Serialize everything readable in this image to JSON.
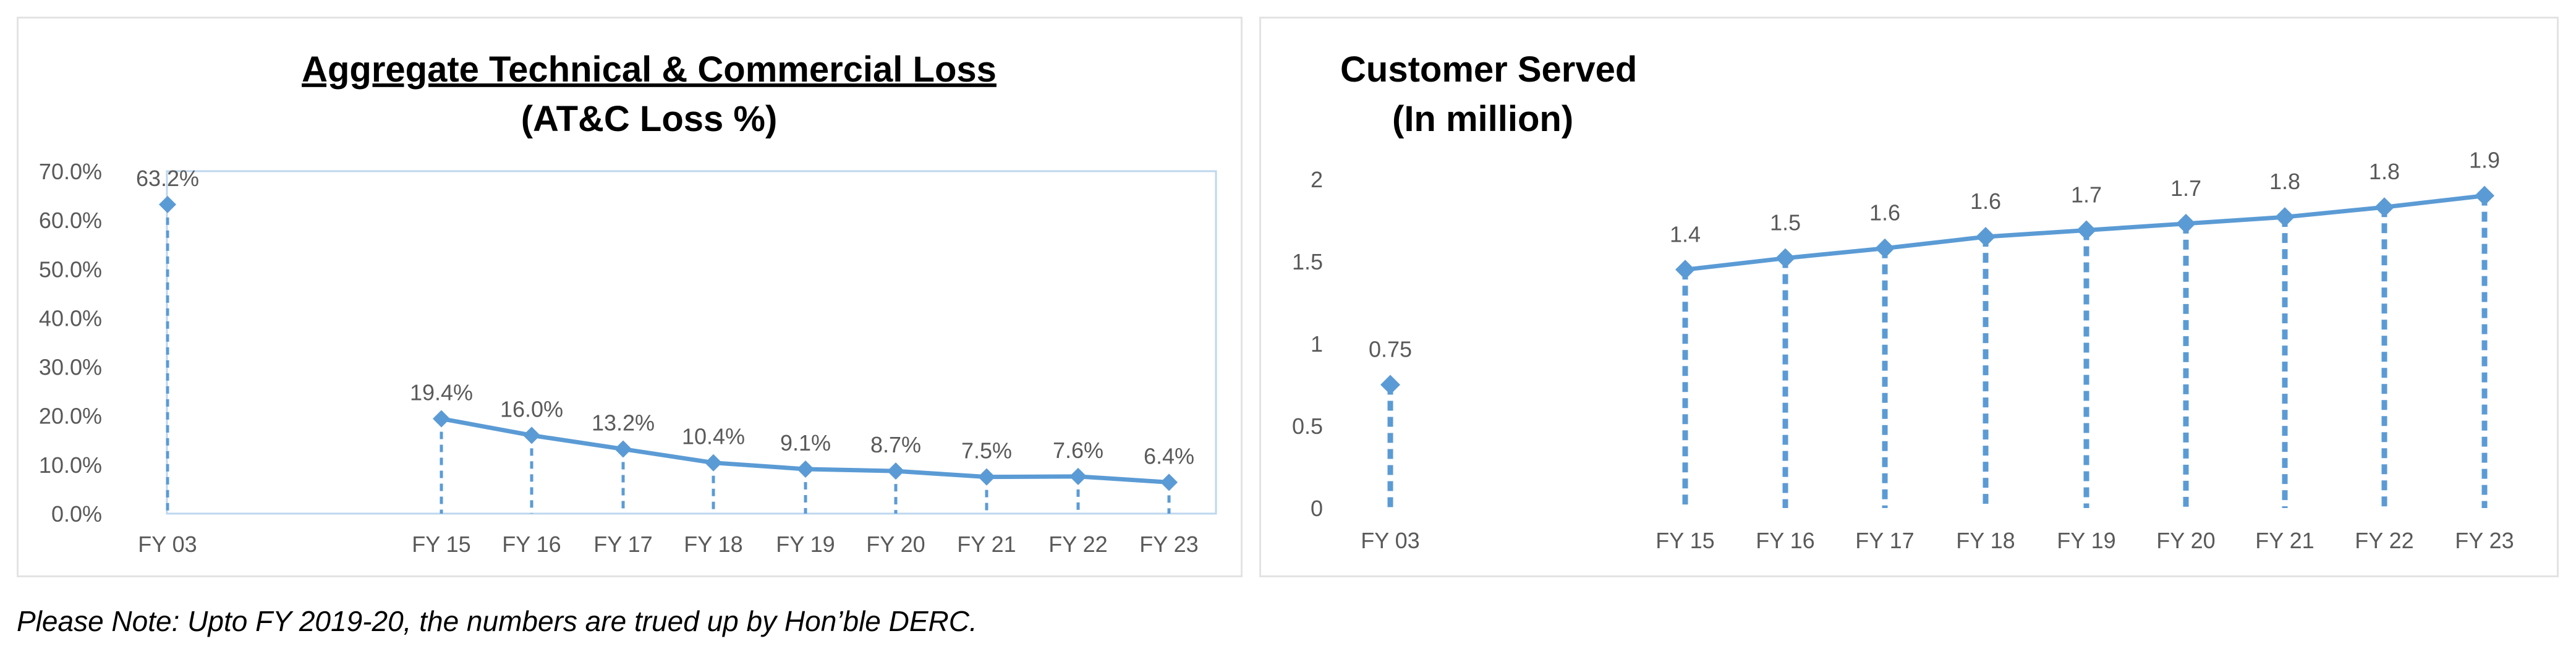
{
  "colors": {
    "series": "#5B9BD5",
    "tick_text": "#595959",
    "plot_border": "#BDD7EE",
    "panel_border": "#E3E3E3"
  },
  "footnote": "Please Note: Upto FY 2019-20, the numbers are trued up by Hon’ble DERC.",
  "chart_data": [
    {
      "type": "line",
      "title": "Aggregate Technical & Commercial Loss",
      "subtitle": "(AT&C Loss %)",
      "categories": [
        "FY 03",
        "FY 15",
        "FY 16",
        "FY 17",
        "FY 18",
        "FY 19",
        "FY 20",
        "FY 21",
        "FY 22",
        "FY 23"
      ],
      "values": [
        63.2,
        19.4,
        16.0,
        13.2,
        10.4,
        9.1,
        8.7,
        7.5,
        7.6,
        6.4
      ],
      "data_labels": [
        "63.2%",
        "19.4%",
        "16.0%",
        "13.2%",
        "10.4%",
        "9.1%",
        "8.7%",
        "7.5%",
        "7.6%",
        "6.4%"
      ],
      "line_from_index": 1,
      "drop_lines": true,
      "ylim": [
        0,
        70
      ],
      "y_ticks": [
        0,
        10,
        20,
        30,
        40,
        50,
        60,
        70
      ],
      "y_tick_labels": [
        "0.0%",
        "10.0%",
        "20.0%",
        "30.0%",
        "40.0%",
        "50.0%",
        "60.0%",
        "70.0%"
      ],
      "grid": false,
      "legend": "none"
    },
    {
      "type": "line",
      "title": "Customer Served",
      "subtitle": "(In million)",
      "categories": [
        "FY 03",
        "FY 15",
        "FY 16",
        "FY 17",
        "FY 18",
        "FY 19",
        "FY 20",
        "FY 21",
        "FY 22",
        "FY 23"
      ],
      "values": [
        0.75,
        1.45,
        1.52,
        1.58,
        1.65,
        1.69,
        1.73,
        1.77,
        1.83,
        1.9
      ],
      "data_labels": [
        "0.75",
        "1.4",
        "1.5",
        "1.6",
        "1.6",
        "1.7",
        "1.7",
        "1.8",
        "1.8",
        "1.9"
      ],
      "line_from_index": 1,
      "drop_lines": true,
      "ylim": [
        0,
        2
      ],
      "y_ticks": [
        0,
        0.5,
        1,
        1.5,
        2
      ],
      "y_tick_labels": [
        "0",
        "0.5",
        "1",
        "1.5",
        "2"
      ],
      "grid": false,
      "legend": "none"
    }
  ]
}
